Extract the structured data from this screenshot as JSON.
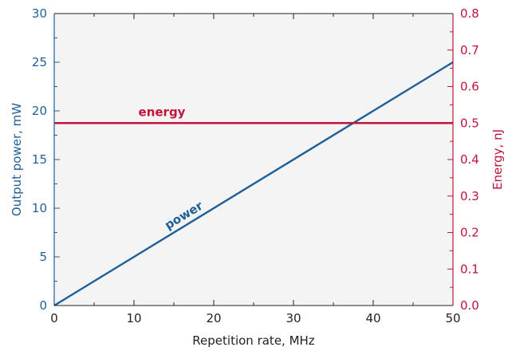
{
  "chart_data": {
    "type": "line",
    "xlabel": "Repetition rate, MHz",
    "ylabel": "Output power, mW",
    "y2label": "Energy, nJ",
    "xlim": [
      0,
      50
    ],
    "ylim": [
      0,
      30
    ],
    "y2lim": [
      0,
      0.8
    ],
    "xticks": [
      "0",
      "10",
      "20",
      "30",
      "40",
      "50"
    ],
    "yticks": [
      "0",
      "5",
      "10",
      "15",
      "20",
      "25",
      "30"
    ],
    "y2ticks": [
      "0.0",
      "0.1",
      "0.2",
      "0.3",
      "0.4",
      "0.5",
      "0.6",
      "0.7",
      "0.8"
    ],
    "grid": false,
    "series": [
      {
        "name": "power",
        "axis": "left",
        "color": "#1f5f97",
        "x": [
          0,
          50
        ],
        "y": [
          0,
          25
        ]
      },
      {
        "name": "energy",
        "axis": "right",
        "color": "#c0143c",
        "x": [
          0,
          50
        ],
        "y": [
          0.5,
          0.5
        ]
      }
    ],
    "colors": {
      "left_axis": "#1f5f97",
      "right_axis": "#c0143c",
      "plot_background": "#f4f4f4"
    }
  }
}
